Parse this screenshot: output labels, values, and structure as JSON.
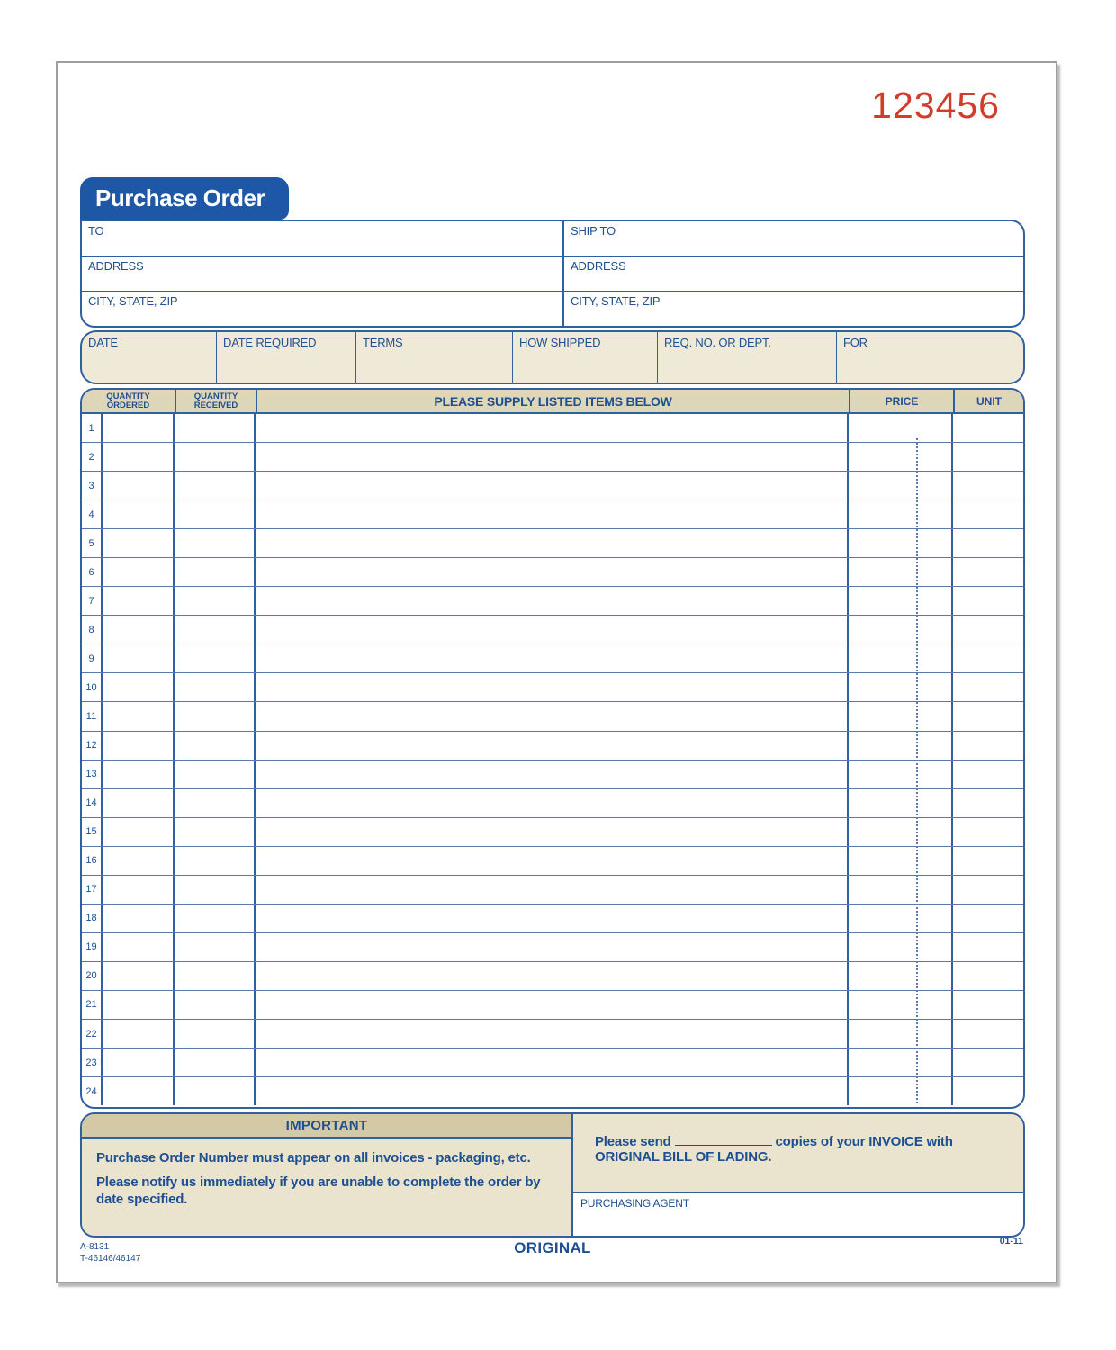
{
  "sheet": {
    "form_number": "123456",
    "tab_title": "Purchase Order"
  },
  "addresses": {
    "to": {
      "name_label": "TO",
      "address_label": "ADDRESS",
      "city_label": "CITY, STATE, ZIP"
    },
    "ship_to": {
      "name_label": "SHIP TO",
      "address_label": "ADDRESS",
      "city_label": "CITY, STATE, ZIP"
    }
  },
  "order_meta": {
    "date_label": "DATE",
    "date_required_label": "DATE REQUIRED",
    "terms_label": "TERMS",
    "how_shipped_label": "HOW SHIPPED",
    "req_no_label": "REQ. NO. OR DEPT.",
    "for_label": "FOR"
  },
  "items_table": {
    "qty_ordered": {
      "line1": "QUANTITY",
      "line2": "ORDERED"
    },
    "qty_received": {
      "line1": "QUANTITY",
      "line2": "RECEIVED"
    },
    "description_header": "PLEASE SUPPLY LISTED ITEMS BELOW",
    "price_header": "PRICE",
    "unit_header": "UNIT",
    "row_numbers": [
      "1",
      "2",
      "3",
      "4",
      "5",
      "6",
      "7",
      "8",
      "9",
      "10",
      "11",
      "12",
      "13",
      "14",
      "15",
      "16",
      "17",
      "18",
      "19",
      "20",
      "21",
      "22",
      "23",
      "24"
    ]
  },
  "important": {
    "header": "IMPORTANT",
    "note1": "Purchase Order Number must appear on all invoices - packaging, etc.",
    "note2": "Please notify us immediately if you are unable to complete the order by date specified."
  },
  "invoice_instruction": {
    "prefix": "Please send",
    "suffix": "copies of your INVOICE with ORIGINAL BILL OF LADING.",
    "agent_label": "PURCHASING AGENT"
  },
  "footer": {
    "code_line1": "A-8131",
    "code_line2": "T-46146/46147",
    "original_label": "ORIGINAL",
    "revision": "01-11"
  },
  "colors": {
    "tab_blue": "#1d57a5",
    "border_blue": "#31609f",
    "label_blue": "#1e4f91",
    "form_number_red": "#d23c2b",
    "header_tan": "#ddd6b9",
    "meta_cream": "#efe9d8",
    "important_band_tan": "#d3c9a5",
    "important_body_tan": "#eae3cd",
    "page_border_gray": "#9e9e9e"
  }
}
